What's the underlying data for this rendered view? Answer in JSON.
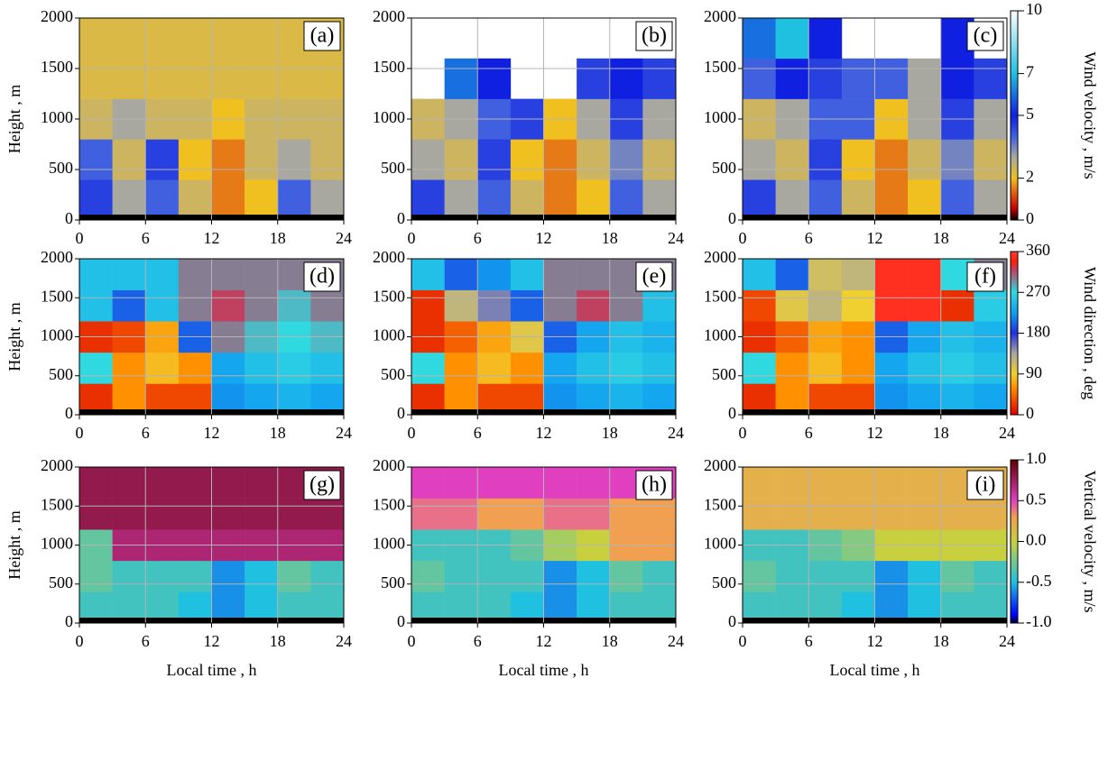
{
  "chart_data": [
    {
      "type": "heatmap",
      "label": "(a)",
      "ylabel": "Height , m",
      "xlim": [
        0,
        24
      ],
      "xticks": [
        0,
        6,
        12,
        18,
        24
      ],
      "ylim": [
        0,
        2000
      ],
      "yticks": [
        0,
        500,
        1000,
        1500,
        2000
      ],
      "grid": true,
      "x_bins": [
        0,
        3,
        6,
        9,
        12,
        15,
        18,
        21,
        24
      ],
      "y_bins": [
        0,
        400,
        800,
        1200,
        1600,
        2000
      ],
      "z": [
        [
          4.5,
          3,
          4,
          2.5,
          1.5,
          2,
          4,
          3
        ],
        [
          4,
          2.5,
          4.5,
          2,
          1.5,
          2.5,
          3,
          2.5
        ],
        [
          2.5,
          3,
          2.5,
          2.5,
          2,
          2.5,
          2.5,
          2.5
        ],
        [
          2.3,
          2.3,
          2.3,
          2.3,
          2.3,
          2.3,
          2.3,
          2.3
        ],
        [
          2.3,
          2.3,
          2.3,
          2.3,
          2.3,
          2.3,
          2.3,
          2.3
        ]
      ]
    },
    {
      "type": "heatmap",
      "label": "(b)",
      "xlim": [
        0,
        24
      ],
      "xticks": [
        0,
        6,
        12,
        18,
        24
      ],
      "ylim": [
        0,
        2000
      ],
      "yticks": [
        0,
        500,
        1000,
        1500,
        2000
      ],
      "grid": true,
      "x_bins": [
        0,
        3,
        6,
        9,
        12,
        15,
        18,
        21,
        24
      ],
      "y_bins": [
        0,
        400,
        800,
        1200,
        1600,
        2000
      ],
      "z": [
        [
          4.5,
          3,
          4,
          2.5,
          1.5,
          2,
          4,
          3
        ],
        [
          3,
          2.5,
          4.5,
          2,
          1.5,
          2.5,
          3.5,
          2.5
        ],
        [
          2.5,
          3,
          4,
          4.5,
          2,
          3,
          4.5,
          3
        ],
        [
          null,
          6,
          5,
          null,
          null,
          4.5,
          5,
          4.5
        ],
        [
          null,
          null,
          null,
          null,
          null,
          null,
          null,
          null
        ]
      ]
    },
    {
      "type": "heatmap",
      "label": "(c)",
      "xlim": [
        0,
        24
      ],
      "xticks": [
        0,
        6,
        12,
        18,
        24
      ],
      "ylim": [
        0,
        2000
      ],
      "yticks": [
        0,
        500,
        1000,
        1500,
        2000
      ],
      "grid": true,
      "x_bins": [
        0,
        3,
        6,
        9,
        12,
        15,
        18,
        21,
        24
      ],
      "y_bins": [
        0,
        400,
        800,
        1200,
        1600,
        2000
      ],
      "z": [
        [
          4.5,
          3,
          4,
          2.5,
          1.5,
          2,
          4,
          3
        ],
        [
          3,
          2.5,
          4.5,
          2,
          1.5,
          2.5,
          3.5,
          2.5
        ],
        [
          2.5,
          3,
          4,
          4,
          2,
          3,
          4.5,
          3
        ],
        [
          4,
          5,
          4.5,
          4,
          4,
          3,
          5,
          4.5
        ],
        [
          6,
          7,
          5,
          null,
          null,
          null,
          5,
          null
        ]
      ]
    },
    {
      "type": "heatmap",
      "label": "(d)",
      "ylabel": "Height , m",
      "xlim": [
        0,
        24
      ],
      "xticks": [
        0,
        6,
        12,
        18,
        24
      ],
      "ylim": [
        0,
        2000
      ],
      "yticks": [
        0,
        500,
        1000,
        1500,
        2000
      ],
      "grid": true,
      "x_bins": [
        0,
        3,
        6,
        9,
        12,
        15,
        18,
        21,
        24
      ],
      "y_bins": [
        0,
        400,
        800,
        1200,
        1600,
        2000
      ],
      "z": [
        [
          20,
          60,
          30,
          30,
          220,
          230,
          240,
          230
        ],
        [
          270,
          60,
          80,
          60,
          230,
          250,
          260,
          250
        ],
        [
          20,
          30,
          70,
          200,
          300,
          280,
          270,
          280
        ],
        [
          250,
          200,
          250,
          300,
          320,
          300,
          280,
          300
        ],
        [
          250,
          250,
          250,
          300,
          300,
          300,
          300,
          300
        ]
      ]
    },
    {
      "type": "heatmap",
      "label": "(e)",
      "xlim": [
        0,
        24
      ],
      "xticks": [
        0,
        6,
        12,
        18,
        24
      ],
      "ylim": [
        0,
        2000
      ],
      "yticks": [
        0,
        500,
        1000,
        1500,
        2000
      ],
      "grid": true,
      "x_bins": [
        0,
        3,
        6,
        9,
        12,
        15,
        18,
        21,
        24
      ],
      "y_bins": [
        0,
        400,
        800,
        1200,
        1600,
        2000
      ],
      "z": [
        [
          20,
          60,
          30,
          30,
          220,
          230,
          240,
          230
        ],
        [
          270,
          60,
          80,
          60,
          230,
          250,
          260,
          250
        ],
        [
          20,
          40,
          70,
          100,
          200,
          230,
          250,
          240
        ],
        [
          20,
          120,
          150,
          200,
          300,
          320,
          300,
          250
        ],
        [
          250,
          200,
          220,
          250,
          300,
          300,
          300,
          300
        ]
      ]
    },
    {
      "type": "heatmap",
      "label": "(f)",
      "xlim": [
        0,
        24
      ],
      "xticks": [
        0,
        6,
        12,
        18,
        24
      ],
      "ylim": [
        0,
        2000
      ],
      "yticks": [
        0,
        500,
        1000,
        1500,
        2000
      ],
      "grid": true,
      "x_bins": [
        0,
        3,
        6,
        9,
        12,
        15,
        18,
        21,
        24
      ],
      "y_bins": [
        0,
        400,
        800,
        1200,
        1600,
        2000
      ],
      "z": [
        [
          20,
          60,
          30,
          30,
          220,
          230,
          240,
          230
        ],
        [
          270,
          60,
          80,
          60,
          230,
          250,
          260,
          250
        ],
        [
          20,
          40,
          70,
          60,
          200,
          230,
          250,
          240
        ],
        [
          30,
          100,
          120,
          90,
          350,
          350,
          20,
          260
        ],
        [
          250,
          200,
          110,
          120,
          350,
          350,
          270,
          300
        ]
      ]
    },
    {
      "type": "heatmap",
      "label": "(g)",
      "ylabel": "Height , m",
      "xlabel": "Local time , h",
      "xlim": [
        0,
        24
      ],
      "xticks": [
        0,
        6,
        12,
        18,
        24
      ],
      "ylim": [
        0,
        2000
      ],
      "yticks": [
        0,
        500,
        1000,
        1500,
        2000
      ],
      "grid": true,
      "x_bins": [
        0,
        3,
        6,
        9,
        12,
        15,
        18,
        21,
        24
      ],
      "y_bins": [
        0,
        400,
        800,
        1200,
        1600,
        2000
      ],
      "z": [
        [
          -0.4,
          -0.4,
          -0.4,
          -0.5,
          -0.6,
          -0.5,
          -0.4,
          -0.4
        ],
        [
          -0.3,
          -0.4,
          -0.4,
          -0.4,
          -0.6,
          -0.5,
          -0.3,
          -0.4
        ],
        [
          -0.3,
          0.7,
          0.7,
          0.7,
          0.7,
          0.7,
          0.7,
          0.7
        ],
        [
          0.8,
          0.8,
          0.8,
          0.8,
          0.8,
          0.8,
          0.8,
          0.8
        ],
        [
          0.8,
          0.8,
          0.8,
          0.8,
          0.8,
          0.8,
          0.8,
          0.8
        ]
      ]
    },
    {
      "type": "heatmap",
      "label": "(h)",
      "xlabel": "Local time , h",
      "xlim": [
        0,
        24
      ],
      "xticks": [
        0,
        6,
        12,
        18,
        24
      ],
      "ylim": [
        0,
        2000
      ],
      "yticks": [
        0,
        500,
        1000,
        1500,
        2000
      ],
      "grid": true,
      "x_bins": [
        0,
        3,
        6,
        9,
        12,
        15,
        18,
        21,
        24
      ],
      "y_bins": [
        0,
        400,
        800,
        1200,
        1600,
        2000
      ],
      "z": [
        [
          -0.4,
          -0.4,
          -0.4,
          -0.5,
          -0.6,
          -0.5,
          -0.4,
          -0.4
        ],
        [
          -0.3,
          -0.4,
          -0.4,
          -0.4,
          -0.6,
          -0.5,
          -0.3,
          -0.4
        ],
        [
          -0.4,
          -0.4,
          -0.4,
          -0.3,
          -0.1,
          0,
          0.3,
          0.3
        ],
        [
          0.4,
          0.4,
          0.3,
          0.3,
          0.4,
          0.4,
          0.3,
          0.3
        ],
        [
          0.5,
          0.5,
          0.5,
          0.5,
          0.5,
          0.5,
          0.5,
          0.5
        ]
      ]
    },
    {
      "type": "heatmap",
      "label": "(i)",
      "xlabel": "Local time , h",
      "xlim": [
        0,
        24
      ],
      "xticks": [
        0,
        6,
        12,
        18,
        24
      ],
      "ylim": [
        0,
        2000
      ],
      "yticks": [
        0,
        500,
        1000,
        1500,
        2000
      ],
      "grid": true,
      "x_bins": [
        0,
        3,
        6,
        9,
        12,
        15,
        18,
        21,
        24
      ],
      "y_bins": [
        0,
        400,
        800,
        1200,
        1600,
        2000
      ],
      "z": [
        [
          -0.4,
          -0.4,
          -0.4,
          -0.5,
          -0.6,
          -0.5,
          -0.4,
          -0.4
        ],
        [
          -0.3,
          -0.4,
          -0.4,
          -0.4,
          -0.6,
          -0.5,
          -0.3,
          -0.4
        ],
        [
          -0.4,
          -0.4,
          -0.3,
          -0.2,
          0,
          0,
          0,
          0
        ],
        [
          0.2,
          0.2,
          0.2,
          0.2,
          0.2,
          0.2,
          0.2,
          0.2
        ],
        [
          0.2,
          0.2,
          0.2,
          0.2,
          0.2,
          0.2,
          0.2,
          0.2
        ]
      ]
    }
  ],
  "colorscales": [
    {
      "label": "Wind velocity , m/s",
      "lim": [
        0,
        10
      ],
      "ticks": [
        0,
        2,
        5,
        7,
        10
      ],
      "stops": [
        {
          "value": 0,
          "color": "#000000"
        },
        {
          "value": 0.5,
          "color": "#c00000"
        },
        {
          "value": 1.2,
          "color": "#e05010"
        },
        {
          "value": 2,
          "color": "#f0c020"
        },
        {
          "value": 3,
          "color": "#a8a8a0"
        },
        {
          "value": 4,
          "color": "#4060e0"
        },
        {
          "value": 5,
          "color": "#1020e0"
        },
        {
          "value": 7,
          "color": "#20c0e0"
        },
        {
          "value": 10,
          "color": "#ffffff"
        }
      ]
    },
    {
      "label": "Wind direction , deg",
      "lim": [
        0,
        360
      ],
      "ticks": [
        0,
        90,
        180,
        270,
        360
      ],
      "stops": [
        {
          "value": 0,
          "color": "#e00000"
        },
        {
          "value": 60,
          "color": "#ff9000"
        },
        {
          "value": 90,
          "color": "#f0d030"
        },
        {
          "value": 135,
          "color": "#a8a8a0"
        },
        {
          "value": 180,
          "color": "#2030e0"
        },
        {
          "value": 225,
          "color": "#10a0f0"
        },
        {
          "value": 270,
          "color": "#30d8e0"
        },
        {
          "value": 320,
          "color": "#c04060"
        },
        {
          "value": 340,
          "color": "#ff2000"
        },
        {
          "value": 360,
          "color": "#ff4040"
        }
      ]
    },
    {
      "label": "Vertical velocity , m/s",
      "lim": [
        -1,
        1
      ],
      "ticks": [
        {
          "value": -1,
          "label": "-1.0"
        },
        {
          "value": -0.5,
          "label": "-0.5"
        },
        {
          "value": 0,
          "label": "0.0"
        },
        {
          "value": 0.5,
          "label": "0.5"
        },
        {
          "value": 1,
          "label": "1.0"
        }
      ],
      "stops": [
        {
          "value": -1,
          "color": "#000030"
        },
        {
          "value": -0.9,
          "color": "#0000ff"
        },
        {
          "value": -0.5,
          "color": "#20c0e0"
        },
        {
          "value": 0,
          "color": "#c8d040"
        },
        {
          "value": 0.3,
          "color": "#f0a050"
        },
        {
          "value": 0.5,
          "color": "#e040c0"
        },
        {
          "value": 1,
          "color": "#600000"
        }
      ]
    }
  ]
}
